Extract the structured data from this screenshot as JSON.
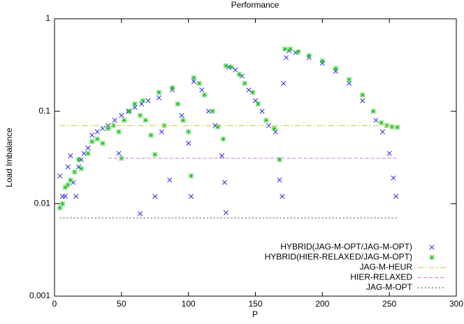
{
  "chart_data": {
    "type": "scatter",
    "title": "Performance",
    "xlabel": "P",
    "ylabel": "Load Imbalance",
    "xlim": [
      0,
      300
    ],
    "xticks": [
      0,
      50,
      100,
      150,
      200,
      250,
      300
    ],
    "ylim": [
      0.001,
      1
    ],
    "yticks": [
      0.001,
      0.01,
      0.1,
      1
    ],
    "ylog": true,
    "legend": "lower right",
    "series": [
      {
        "name": "HYBRID(JAG-M-OPT/JAG-M-OPT)",
        "color": "#2a2ae0",
        "marker": "x",
        "x": [
          4,
          6,
          8,
          10,
          12,
          14,
          16,
          18,
          20,
          22,
          25,
          28,
          32,
          36,
          40,
          45,
          48,
          50,
          55,
          60,
          64,
          65,
          70,
          75,
          78,
          80,
          86,
          88,
          95,
          100,
          102,
          104,
          110,
          115,
          120,
          125,
          127,
          128,
          130,
          135,
          140,
          145,
          150,
          155,
          160,
          165,
          168,
          170,
          171,
          173,
          175,
          180,
          190,
          200,
          210,
          220,
          230,
          240,
          245,
          250,
          253,
          255
        ],
        "values": [
          0.02,
          0.012,
          0.012,
          0.025,
          0.033,
          0.017,
          0.012,
          0.025,
          0.03,
          0.035,
          0.04,
          0.055,
          0.06,
          0.065,
          0.07,
          0.08,
          0.035,
          0.09,
          0.1,
          0.11,
          0.0078,
          0.12,
          0.13,
          0.012,
          0.14,
          0.06,
          0.018,
          0.17,
          0.09,
          0.045,
          0.012,
          0.21,
          0.17,
          0.1,
          0.07,
          0.033,
          0.017,
          0.008,
          0.3,
          0.28,
          0.24,
          0.17,
          0.13,
          0.1,
          0.07,
          0.06,
          0.018,
          0.012,
          0.2,
          0.38,
          0.45,
          0.43,
          0.38,
          0.33,
          0.27,
          0.2,
          0.13,
          0.08,
          0.06,
          0.035,
          0.019,
          0.012
        ]
      },
      {
        "name": "HYBRID(HIER-RELAXED/JAG-M-OPT)",
        "color": "#20c020",
        "marker": "star",
        "x": [
          4,
          6,
          8,
          10,
          12,
          15,
          18,
          20,
          25,
          28,
          32,
          36,
          40,
          44,
          48,
          50,
          52,
          56,
          60,
          64,
          66,
          68,
          72,
          75,
          78,
          82,
          88,
          92,
          96,
          100,
          102,
          104,
          108,
          112,
          118,
          122,
          126,
          128,
          132,
          138,
          142,
          148,
          152,
          158,
          164,
          168,
          172,
          176,
          182,
          190,
          200,
          210,
          220,
          230,
          238,
          244,
          248,
          252,
          256
        ],
        "values": [
          0.009,
          0.01,
          0.015,
          0.016,
          0.018,
          0.022,
          0.03,
          0.024,
          0.035,
          0.047,
          0.05,
          0.045,
          0.065,
          0.07,
          0.06,
          0.031,
          0.08,
          0.1,
          0.12,
          0.09,
          0.13,
          0.08,
          0.055,
          0.034,
          0.16,
          0.07,
          0.18,
          0.12,
          0.08,
          0.06,
          0.02,
          0.23,
          0.2,
          0.15,
          0.1,
          0.068,
          0.05,
          0.31,
          0.3,
          0.25,
          0.2,
          0.16,
          0.12,
          0.08,
          0.065,
          0.03,
          0.47,
          0.47,
          0.44,
          0.4,
          0.35,
          0.29,
          0.22,
          0.15,
          0.1,
          0.075,
          0.07,
          0.068,
          0.067
        ]
      },
      {
        "name": "JAG-M-HEUR",
        "color": "#c8c040",
        "marker": "line",
        "dash": "8 3 2 3",
        "x": [
          4,
          256
        ],
        "values": [
          0.07,
          0.07
        ]
      },
      {
        "name": "HIER-RELAXED",
        "color": "#e070e0",
        "marker": "line",
        "dash": "5 3",
        "x": [
          40,
          256
        ],
        "values": [
          0.031,
          0.031
        ]
      },
      {
        "name": "JAG-M-OPT",
        "color": "#404040",
        "marker": "line",
        "dash": "2 3",
        "x": [
          4,
          256
        ],
        "values": [
          0.007,
          0.007
        ]
      }
    ]
  }
}
